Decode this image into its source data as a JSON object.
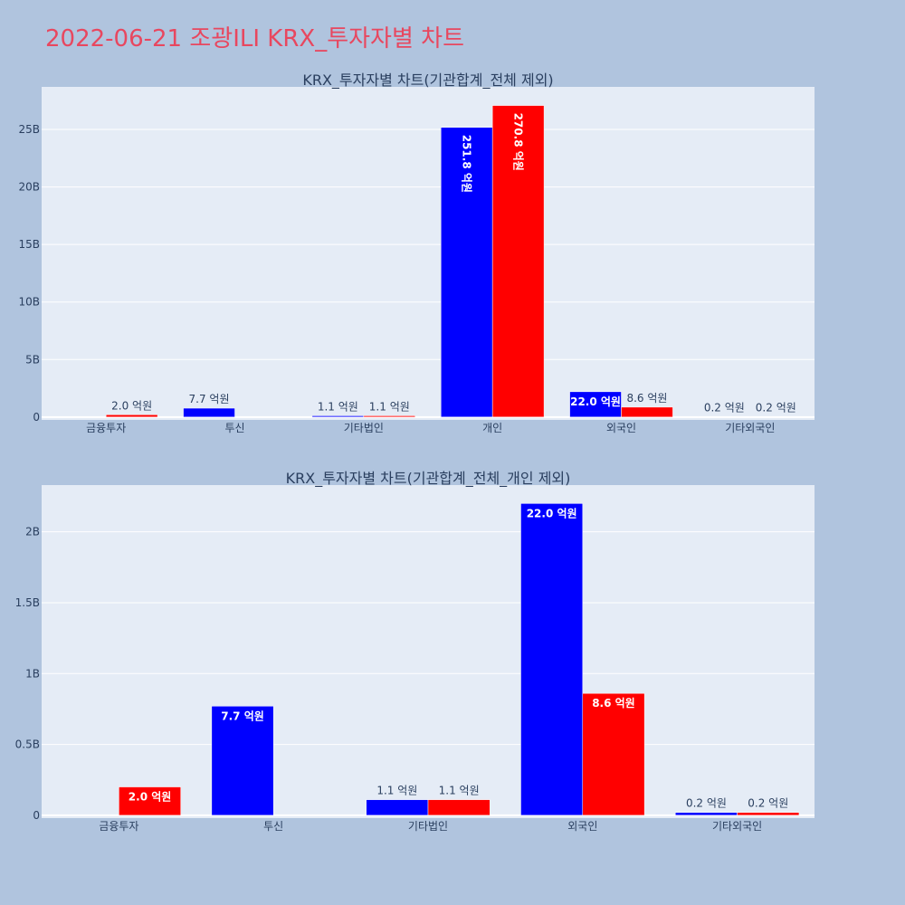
{
  "page": {
    "title": "2022-06-21 조광ILI KRX_투자자별 차트",
    "background": "#b0c4de",
    "title_color": "#e8475f"
  },
  "colors": {
    "buy": "#0000ff",
    "sell": "#ff0000",
    "plot_bg": "#e5ecf6"
  },
  "chart_data": [
    {
      "type": "bar",
      "title": "KRX_투자자별 차트(기관합계_전체 제외)",
      "categories": [
        "금융투자",
        "투신",
        "기타법인",
        "개인",
        "외국인",
        "기타외국인"
      ],
      "series": [
        {
          "color": "#0000ff",
          "values": [
            0,
            770000000,
            110000000,
            25180000000,
            2200000000,
            20000000
          ],
          "labels": [
            "",
            "7.7 억원",
            "1.1 억원",
            "251.8 억원",
            "22.0 억원",
            "0.2 억원"
          ]
        },
        {
          "color": "#ff0000",
          "values": [
            200000000,
            0,
            110000000,
            27080000000,
            860000000,
            20000000
          ],
          "labels": [
            "2.0 억원",
            "",
            "1.1 억원",
            "270.8 억원",
            "8.6 억원",
            "0.2 억원"
          ]
        }
      ],
      "yticks": [
        0,
        5000000000,
        10000000000,
        15000000000,
        20000000000,
        25000000000
      ],
      "ytick_labels": [
        "0",
        "5B",
        "10B",
        "15B",
        "20B",
        "25B"
      ],
      "ylim": [
        -250000000,
        28700000000
      ],
      "grid": true
    },
    {
      "type": "bar",
      "title": "KRX_투자자별 차트(기관합계_전체_개인 제외)",
      "categories": [
        "금융투자",
        "투신",
        "기타법인",
        "외국인",
        "기타외국인"
      ],
      "series": [
        {
          "color": "#0000ff",
          "values": [
            0,
            770000000,
            110000000,
            2200000000,
            20000000
          ],
          "labels": [
            "",
            "7.7 억원",
            "1.1 억원",
            "22.0 억원",
            "0.2 억원"
          ]
        },
        {
          "color": "#ff0000",
          "values": [
            200000000,
            0,
            110000000,
            860000000,
            20000000
          ],
          "labels": [
            "2.0 억원",
            "",
            "1.1 억원",
            "8.6 억원",
            "0.2 억원"
          ]
        }
      ],
      "yticks": [
        0,
        500000000,
        1000000000,
        1500000000,
        2000000000
      ],
      "ytick_labels": [
        "0",
        "0.5B",
        "1B",
        "1.5B",
        "2B"
      ],
      "ylim": [
        -20000000,
        2330000000
      ],
      "grid": true
    }
  ]
}
